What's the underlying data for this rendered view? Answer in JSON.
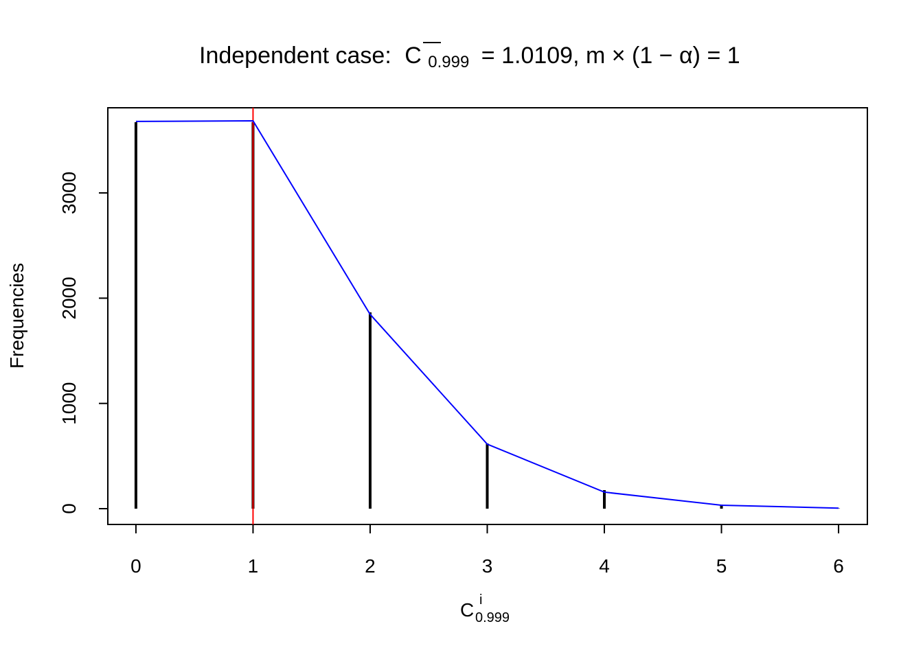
{
  "chart_data": {
    "type": "spike",
    "title": {
      "prefix": "Independent case:",
      "symbol": "C",
      "subscript": "0.999",
      "suffix": "= 1.0109, m × (1 − α) = 1"
    },
    "x_label": {
      "symbol": "C",
      "superscript": "i",
      "subscript": "0.999"
    },
    "y_label": "Frequencies",
    "x": [
      0,
      1,
      2,
      3,
      4,
      5,
      6
    ],
    "values": [
      3672,
      3672,
      1865,
      620,
      176,
      39,
      3
    ],
    "color": "#000000",
    "fit": {
      "values": [
        3679,
        3685,
        1846,
        613,
        157,
        33,
        5
      ],
      "color": "#0000ff"
    },
    "vline": {
      "x": 1,
      "color": "#ff0000"
    },
    "xlim": [
      -0.24,
      6.246
    ],
    "ylim": [
      -150,
      3809
    ],
    "xticks": [
      0,
      1,
      2,
      3,
      4,
      5,
      6
    ],
    "yticks": [
      0,
      1000,
      2000,
      3000
    ]
  }
}
